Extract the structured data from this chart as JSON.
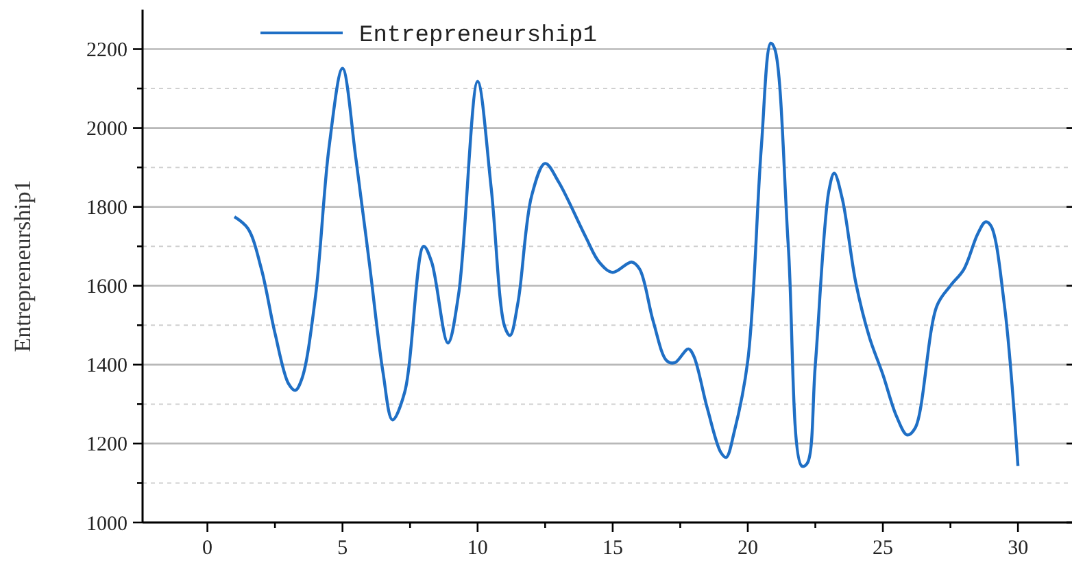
{
  "chart_data": {
    "type": "line",
    "ylabel": "Entrepreneurship1",
    "legend": "top",
    "grid": "y",
    "marker": "none",
    "line_style": "solid",
    "xlim": [
      -2.4,
      32
    ],
    "ylim": [
      1000,
      2300
    ],
    "xticks": [
      0,
      {
        "value": 2.5,
        "label": null
      },
      5,
      {
        "value": 7.5,
        "label": null
      },
      10,
      {
        "value": 12.5,
        "label": null
      },
      15,
      {
        "value": 17.5,
        "label": null
      },
      20,
      {
        "value": 22.5,
        "label": null
      },
      25,
      {
        "value": 27.5,
        "label": null
      },
      30
    ],
    "yticks": [
      1000,
      {
        "value": 1100,
        "label": null
      },
      1200,
      {
        "value": 1300,
        "label": null
      },
      1400,
      {
        "value": 1500,
        "label": null
      },
      1600,
      {
        "value": 1700,
        "label": null
      },
      1800,
      {
        "value": 1900,
        "label": null
      },
      2000,
      {
        "value": 2100,
        "label": null
      },
      2200
    ],
    "series": [
      {
        "name": "Entrepreneurship1",
        "color": "#1f6fc5",
        "x": [
          1,
          1.5,
          2,
          2.5,
          3,
          3.25,
          3.5,
          4,
          4.5,
          5,
          5.5,
          6,
          6.5,
          6.85,
          7.3,
          8,
          8.3,
          8.9,
          9.3,
          10,
          10.5,
          11,
          11.2,
          11.5,
          12,
          12.5,
          13,
          14,
          14.5,
          15,
          15.7,
          16,
          16.5,
          17,
          17.3,
          17.8,
          18,
          18.5,
          19,
          19.2,
          19.5,
          20,
          20.5,
          20.85,
          21,
          21.5,
          22,
          22.2,
          22.5,
          23,
          23.2,
          23.5,
          24,
          24.5,
          25,
          25.5,
          25.9,
          26.2,
          27,
          27.5,
          28,
          28.5,
          28.8,
          29,
          29.5,
          30
        ],
        "values": [
          1775,
          1745,
          1642,
          1480,
          1352,
          1335,
          1365,
          1573,
          1950,
          2151,
          1920,
          1654,
          1380,
          1260,
          1330,
          1700,
          1660,
          1455,
          1580,
          2118,
          1850,
          1497,
          1474,
          1560,
          1828,
          1910,
          1863,
          1724,
          1660,
          1634,
          1660,
          1642,
          1510,
          1410,
          1405,
          1440,
          1422,
          1290,
          1178,
          1165,
          1230,
          1410,
          1950,
          2215,
          2200,
          1700,
          1143,
          1150,
          1400,
          1840,
          1885,
          1820,
          1607,
          1470,
          1375,
          1270,
          1222,
          1240,
          1549,
          1600,
          1642,
          1730,
          1762,
          1752,
          1550,
          1143
        ]
      }
    ]
  }
}
